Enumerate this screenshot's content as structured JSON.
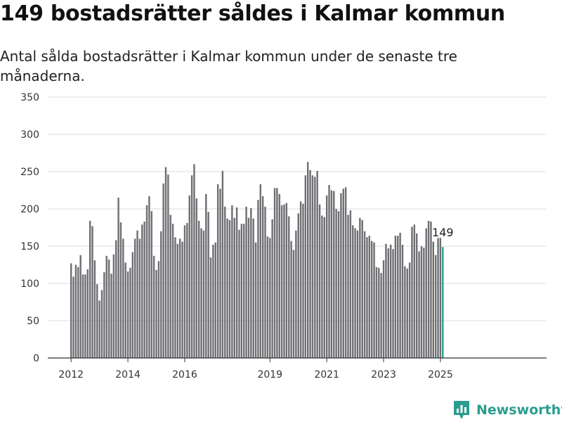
{
  "chart_data": {
    "type": "bar",
    "title": "149 bostadsrätter såldes i Kalmar kommun",
    "subtitle": "Antal sålda bostadsrätter i Kalmar kommun under de senaste tre månaderna.",
    "xlabel": "",
    "ylabel": "",
    "ylim": [
      0,
      350
    ],
    "yticks": [
      0,
      50,
      100,
      150,
      200,
      250,
      300,
      350
    ],
    "grid": true,
    "x_start": "2012-01",
    "x_tick_labels": [
      {
        "label": "2012",
        "date": "2012-01"
      },
      {
        "label": "2014",
        "date": "2014-01"
      },
      {
        "label": "2016",
        "date": "2016-01"
      },
      {
        "label": "2019",
        "date": "2019-01"
      },
      {
        "label": "2021",
        "date": "2021-01"
      },
      {
        "label": "2023",
        "date": "2023-01"
      },
      {
        "label": "2025",
        "date": "2025-01"
      }
    ],
    "values": [
      127,
      109,
      125,
      122,
      138,
      112,
      112,
      119,
      184,
      177,
      131,
      99,
      77,
      91,
      115,
      137,
      132,
      113,
      139,
      158,
      215,
      182,
      160,
      128,
      116,
      121,
      142,
      160,
      171,
      160,
      179,
      183,
      205,
      217,
      197,
      137,
      118,
      130,
      170,
      234,
      256,
      246,
      192,
      180,
      162,
      153,
      160,
      156,
      178,
      181,
      218,
      245,
      260,
      214,
      184,
      174,
      171,
      220,
      196,
      135,
      152,
      155,
      233,
      227,
      251,
      203,
      187,
      185,
      205,
      188,
      202,
      172,
      180,
      180,
      203,
      188,
      201,
      187,
      155,
      212,
      233,
      217,
      203,
      163,
      161,
      186,
      228,
      228,
      220,
      205,
      206,
      208,
      190,
      157,
      145,
      171,
      194,
      210,
      207,
      245,
      263,
      252,
      245,
      243,
      251,
      206,
      191,
      189,
      218,
      232,
      225,
      224,
      200,
      197,
      221,
      227,
      229,
      192,
      198,
      178,
      174,
      171,
      188,
      185,
      170,
      162,
      164,
      157,
      155,
      122,
      121,
      114,
      131,
      153,
      147,
      152,
      146,
      164,
      164,
      168,
      152,
      123,
      120,
      128,
      176,
      179,
      167,
      143,
      150,
      148,
      174,
      184,
      183,
      156,
      138,
      161,
      161,
      149
    ],
    "highlight_last": true,
    "last_value_label": "149",
    "colors": {
      "bar": "#6e6e73",
      "highlight": "#2a9d8f",
      "grid": "#dddddd",
      "axis": "#333333"
    }
  },
  "branding": {
    "logo_text": "Newsworthy",
    "logo_icon": "bar-chart-icon",
    "color": "#2a9d8f"
  }
}
